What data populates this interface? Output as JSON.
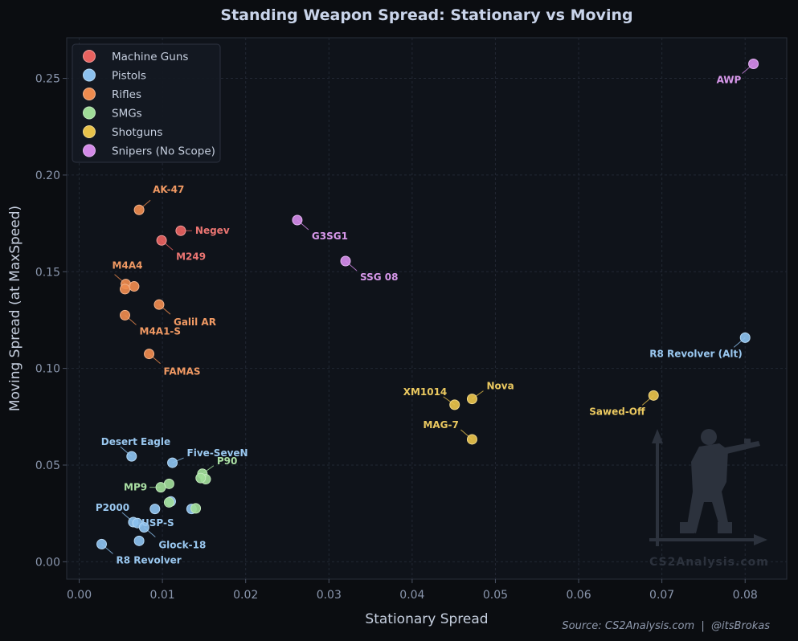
{
  "chart_data": {
    "type": "scatter",
    "title": "Standing Weapon Spread: Stationary vs Moving",
    "xlabel": "Stationary Spread",
    "ylabel": "Moving Spread (at MaxSpeed)",
    "xlim": [
      -0.0015,
      0.085
    ],
    "ylim": [
      -0.009,
      0.271
    ],
    "xticks": [
      0.0,
      0.01,
      0.02,
      0.03,
      0.04,
      0.05,
      0.06,
      0.07,
      0.08
    ],
    "yticks": [
      0.0,
      0.05,
      0.1,
      0.15,
      0.2,
      0.25
    ],
    "xtick_labels": [
      "0.00",
      "0.01",
      "0.02",
      "0.03",
      "0.04",
      "0.05",
      "0.06",
      "0.07",
      "0.08"
    ],
    "ytick_labels": [
      "0.00",
      "0.05",
      "0.10",
      "0.15",
      "0.20",
      "0.25"
    ],
    "grid": true,
    "legend_position": "top-left",
    "source": "Source: CS2Analysis.com  |  @itsBrokas",
    "watermark": "CS2Analysis.com",
    "series": [
      {
        "name": "Machine Guns",
        "color": "#e8625f",
        "points": [
          {
            "label": "Negev",
            "x": 0.0122,
            "y": 0.1712
          },
          {
            "label": "M249",
            "x": 0.0099,
            "y": 0.1662
          }
        ]
      },
      {
        "name": "Pistols",
        "color": "#8cc1ee",
        "points": [
          {
            "label": "R8 Revolver (Alt)",
            "x": 0.08,
            "y": 0.1159
          },
          {
            "label": "Desert Eagle",
            "x": 0.0063,
            "y": 0.0545
          },
          {
            "label": "Five-SeveN",
            "x": 0.0112,
            "y": 0.0512
          },
          {
            "label": "",
            "x": 0.011,
            "y": 0.0312
          },
          {
            "label": "",
            "x": 0.0135,
            "y": 0.0273
          },
          {
            "label": "",
            "x": 0.0091,
            "y": 0.0273
          },
          {
            "label": "P2000",
            "x": 0.0065,
            "y": 0.0205
          },
          {
            "label": "USP-S",
            "x": 0.007,
            "y": 0.02
          },
          {
            "label": "Glock-18",
            "x": 0.0078,
            "y": 0.0178
          },
          {
            "label": "",
            "x": 0.0072,
            "y": 0.0108
          },
          {
            "label": "R8 Revolver",
            "x": 0.0027,
            "y": 0.0091
          }
        ]
      },
      {
        "name": "Rifles",
        "color": "#ee8b4e",
        "points": [
          {
            "label": "AK-47",
            "x": 0.0072,
            "y": 0.182
          },
          {
            "label": "M4A4",
            "x": 0.0056,
            "y": 0.1436
          },
          {
            "label": "",
            "x": 0.0066,
            "y": 0.1424
          },
          {
            "label": "",
            "x": 0.0055,
            "y": 0.141
          },
          {
            "label": "Galil AR",
            "x": 0.0096,
            "y": 0.133
          },
          {
            "label": "M4A1-S",
            "x": 0.0055,
            "y": 0.1275
          },
          {
            "label": "FAMAS",
            "x": 0.0084,
            "y": 0.1075
          }
        ]
      },
      {
        "name": "SMGs",
        "color": "#9fdc98",
        "points": [
          {
            "label": "P90",
            "x": 0.0148,
            "y": 0.0455
          },
          {
            "label": "",
            "x": 0.0152,
            "y": 0.0427
          },
          {
            "label": "",
            "x": 0.0146,
            "y": 0.0433
          },
          {
            "label": "",
            "x": 0.0108,
            "y": 0.0403
          },
          {
            "label": "MP9",
            "x": 0.0098,
            "y": 0.0385
          },
          {
            "label": "",
            "x": 0.0108,
            "y": 0.0307
          },
          {
            "label": "",
            "x": 0.014,
            "y": 0.0276
          }
        ]
      },
      {
        "name": "Shotguns",
        "color": "#e8c24a",
        "points": [
          {
            "label": "Sawed-Off",
            "x": 0.069,
            "y": 0.086
          },
          {
            "label": "Nova",
            "x": 0.0472,
            "y": 0.0842
          },
          {
            "label": "XM1014",
            "x": 0.0451,
            "y": 0.0812
          },
          {
            "label": "MAG-7",
            "x": 0.0472,
            "y": 0.0633
          }
        ]
      },
      {
        "name": "Snipers (No Scope)",
        "color": "#d38ae8",
        "points": [
          {
            "label": "AWP",
            "x": 0.081,
            "y": 0.2575
          },
          {
            "label": "G3SG1",
            "x": 0.0262,
            "y": 0.1767
          },
          {
            "label": "SSG 08",
            "x": 0.032,
            "y": 0.1555
          }
        ]
      }
    ]
  }
}
